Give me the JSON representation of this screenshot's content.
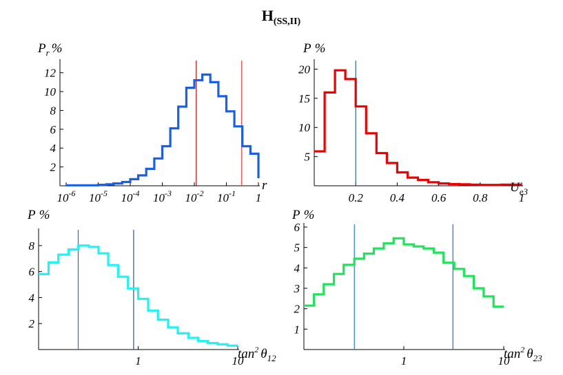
{
  "title": {
    "main": "H",
    "sub": "(SS,II)"
  },
  "chart_data": [
    {
      "type": "histogram",
      "ylabel": "P",
      "ylabel_sub": "r",
      "ylabel_unit": "%",
      "xlabel": "r",
      "x_scale": "log",
      "xlim": [
        1e-06,
        1
      ],
      "ylim": [
        0,
        13
      ],
      "x_ticks": [
        {
          "base": "10",
          "exp": "-6",
          "v": 1e-06
        },
        {
          "base": "10",
          "exp": "-5",
          "v": 1e-05
        },
        {
          "base": "10",
          "exp": "-4",
          "v": 0.0001
        },
        {
          "base": "10",
          "exp": "-3",
          "v": 0.001
        },
        {
          "base": "10",
          "exp": "-2",
          "v": 0.01
        },
        {
          "base": "10",
          "exp": "-1",
          "v": 0.1
        },
        {
          "base": "1",
          "exp": "",
          "v": 1
        }
      ],
      "y_ticks": [
        "2",
        "4",
        "6",
        "8",
        "10",
        "12"
      ],
      "color": "#1a5fe6",
      "step_x": [
        1e-06,
        1e-05,
        1.8e-05,
        3e-05,
        5.6e-05,
        0.0001,
        0.000178,
        0.000316,
        0.000562,
        0.001,
        0.00178,
        0.00316,
        0.00562,
        0.01,
        0.0178,
        0.0316,
        0.0562,
        0.1,
        0.178,
        0.316,
        0.562,
        1
      ],
      "step_y": [
        0.05,
        0.1,
        0.15,
        0.25,
        0.4,
        0.7,
        1.1,
        1.8,
        2.9,
        4.2,
        6.1,
        8.4,
        10.4,
        11.2,
        11.8,
        11.0,
        9.5,
        7.9,
        6.3,
        4.2,
        3.4,
        0.8
      ],
      "vlines": [
        {
          "x": 0.0115,
          "color": "#cc0000"
        },
        {
          "x": 0.3,
          "color": "#ff4040"
        }
      ]
    },
    {
      "type": "histogram",
      "ylabel": "P",
      "ylabel_unit": "%",
      "xlabel": "U",
      "xlabel_sub": "e3",
      "x_scale": "linear",
      "xlim": [
        0,
        1
      ],
      "ylim": [
        0,
        21
      ],
      "x_ticks": [
        {
          "base": "0.2",
          "exp": "",
          "v": 0.2
        },
        {
          "base": "0.4",
          "exp": "",
          "v": 0.4
        },
        {
          "base": "0.6",
          "exp": "",
          "v": 0.6
        },
        {
          "base": "0.8",
          "exp": "",
          "v": 0.8
        },
        {
          "base": "1",
          "exp": "",
          "v": 1
        }
      ],
      "y_ticks": [
        "5",
        "10",
        "15",
        "20"
      ],
      "color": "#ee0000",
      "step_x": [
        0,
        0.05,
        0.1,
        0.15,
        0.2,
        0.25,
        0.3,
        0.35,
        0.4,
        0.45,
        0.5,
        0.55,
        0.6,
        0.65,
        0.7,
        0.75,
        0.8,
        0.85,
        0.9,
        0.95,
        1.0
      ],
      "step_y": [
        5.9,
        16.0,
        19.8,
        18.3,
        13.6,
        9.0,
        5.6,
        3.9,
        2.3,
        1.4,
        1.0,
        0.6,
        0.4,
        0.3,
        0.25,
        0.2,
        0.15,
        0.15,
        0.2,
        0.2,
        0.2
      ],
      "vlines": [
        {
          "x": 0.2,
          "color": "#1f6f8f"
        }
      ]
    },
    {
      "type": "histogram",
      "ylabel": "P",
      "ylabel_unit": "%",
      "xlabel": "tan",
      "xlabel_sup": "2",
      "xlabel_theta": "θ",
      "xlabel_sub": "12",
      "x_scale": "log",
      "xlim": [
        0.1,
        10
      ],
      "ylim": [
        0,
        9
      ],
      "x_ticks": [
        {
          "base": "1",
          "exp": "",
          "v": 1
        },
        {
          "base": "10",
          "exp": "",
          "v": 10
        }
      ],
      "y_ticks": [
        "2",
        "4",
        "6",
        "8"
      ],
      "color": "#1ff3f3",
      "step_x": [
        0.1,
        0.126,
        0.158,
        0.2,
        0.25,
        0.32,
        0.4,
        0.5,
        0.63,
        0.79,
        1.0,
        1.26,
        1.58,
        2.0,
        2.5,
        3.2,
        4.0,
        5.0,
        6.3,
        7.9,
        10
      ],
      "step_y": [
        5.8,
        6.7,
        7.3,
        7.7,
        8.0,
        7.9,
        7.4,
        6.5,
        5.6,
        4.7,
        3.9,
        3.0,
        2.3,
        1.7,
        1.25,
        0.9,
        0.65,
        0.5,
        0.4,
        0.3
      ],
      "vlines": [
        {
          "x": 0.25,
          "color": "#1f6fd6"
        },
        {
          "x": 0.9,
          "color": "#1f4fbf"
        }
      ]
    },
    {
      "type": "histogram",
      "ylabel": "P",
      "ylabel_unit": "%",
      "xlabel": "tan",
      "xlabel_sup": "2",
      "xlabel_theta": "θ",
      "xlabel_sub": "23",
      "x_scale": "log",
      "xlim": [
        0.1,
        10
      ],
      "ylim": [
        0,
        6
      ],
      "x_ticks": [
        {
          "base": "1",
          "exp": "",
          "v": 1
        },
        {
          "base": "10",
          "exp": "",
          "v": 10
        }
      ],
      "y_ticks": [
        "1",
        "2",
        "3",
        "4",
        "5",
        "6"
      ],
      "color": "#1fe35a",
      "step_x": [
        0.1,
        0.126,
        0.158,
        0.2,
        0.25,
        0.32,
        0.4,
        0.5,
        0.63,
        0.79,
        1.0,
        1.26,
        1.58,
        2.0,
        2.5,
        3.2,
        4.0,
        5.0,
        6.3,
        7.9,
        10
      ],
      "step_y": [
        2.15,
        2.7,
        3.2,
        3.7,
        4.15,
        4.45,
        4.7,
        4.95,
        5.2,
        5.45,
        5.15,
        5.05,
        4.95,
        4.75,
        4.25,
        3.95,
        3.6,
        3.0,
        2.6,
        2.1
      ],
      "vlines": [
        {
          "x": 0.32,
          "color": "#1f7fdf"
        },
        {
          "x": 3.1,
          "color": "#1f6fcf"
        }
      ]
    }
  ]
}
